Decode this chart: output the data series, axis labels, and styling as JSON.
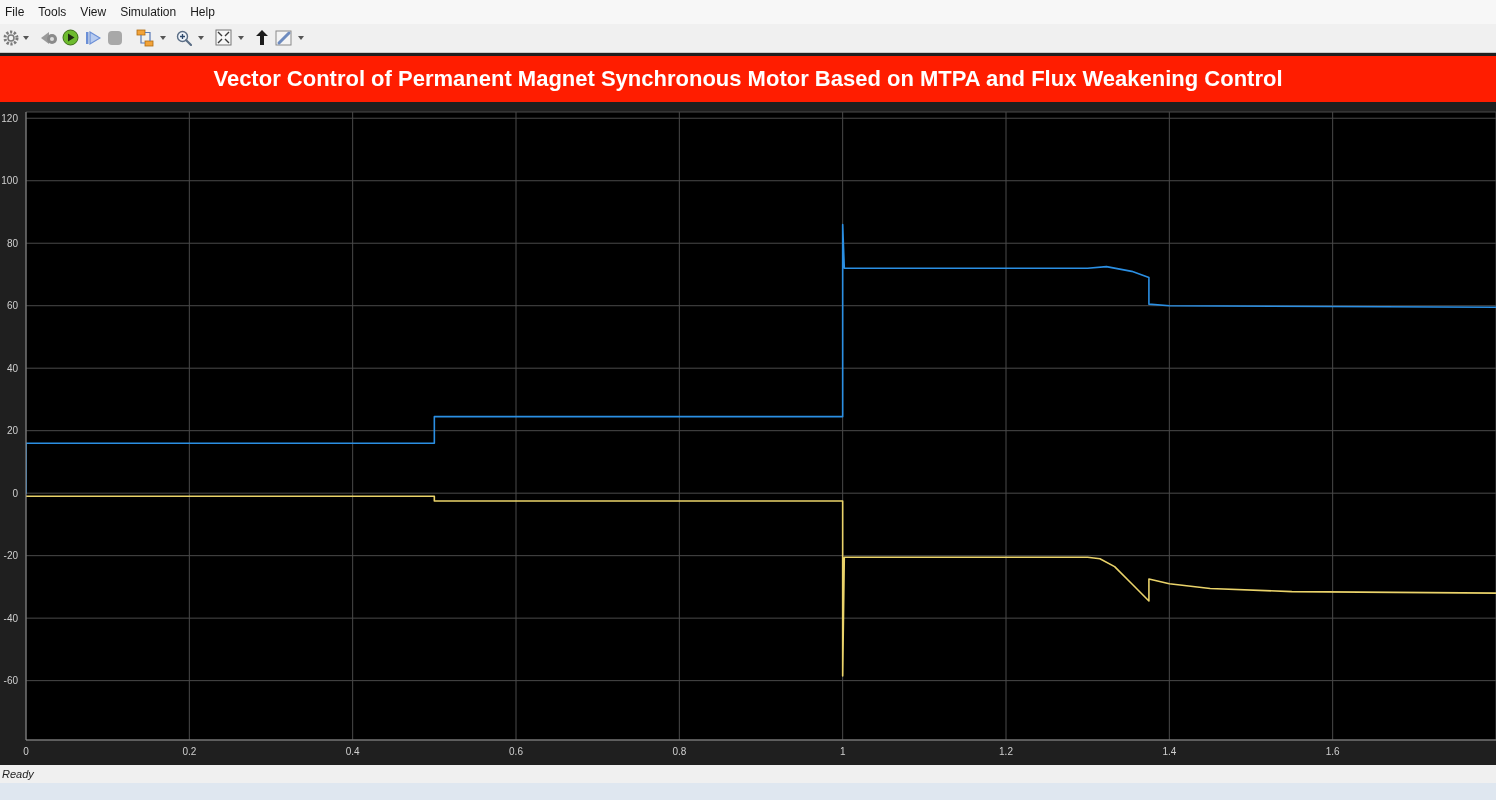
{
  "chart_data": {
    "type": "line",
    "title": "Vector Control of Permanent Magnet Synchronous Motor Based on MTPA and Flux Weakening Control",
    "series": [
      {
        "color": "#2b8fe3",
        "x": [
          0,
          0,
          0.5,
          0.5,
          1,
          1,
          1.002,
          1.3,
          1.323,
          1.354,
          1.375,
          1.375,
          1.4,
          1.8
        ],
        "values": [
          0,
          16,
          16,
          24.5,
          24.5,
          86,
          72,
          72,
          72.5,
          71,
          69,
          60.5,
          60,
          59.5
        ]
      },
      {
        "color": "#ead36a",
        "x": [
          0,
          0.5,
          0.5,
          1,
          1,
          1.002,
          1.3,
          1.315,
          1.333,
          1.354,
          1.375,
          1.375,
          1.4,
          1.45,
          1.55,
          1.8
        ],
        "values": [
          -1,
          -1,
          -2.5,
          -2.5,
          -58.5,
          -20.5,
          -20.5,
          -21,
          -23.5,
          -29,
          -34.5,
          -27.5,
          -29,
          -30.5,
          -31.5,
          -32
        ]
      }
    ],
    "xlim": [
      0,
      1.8
    ],
    "xticks": [
      0,
      0.2,
      0.4,
      0.6,
      0.8,
      1,
      1.2,
      1.4,
      1.6
    ],
    "ylim": [
      -79,
      122
    ],
    "yticks": [
      -60,
      -40,
      -20,
      0,
      20,
      40,
      60,
      80,
      100,
      120
    ],
    "grid": true,
    "annotations": [
      "File",
      "Tools",
      "View",
      "Simulation",
      "Help",
      "Ready"
    ]
  }
}
